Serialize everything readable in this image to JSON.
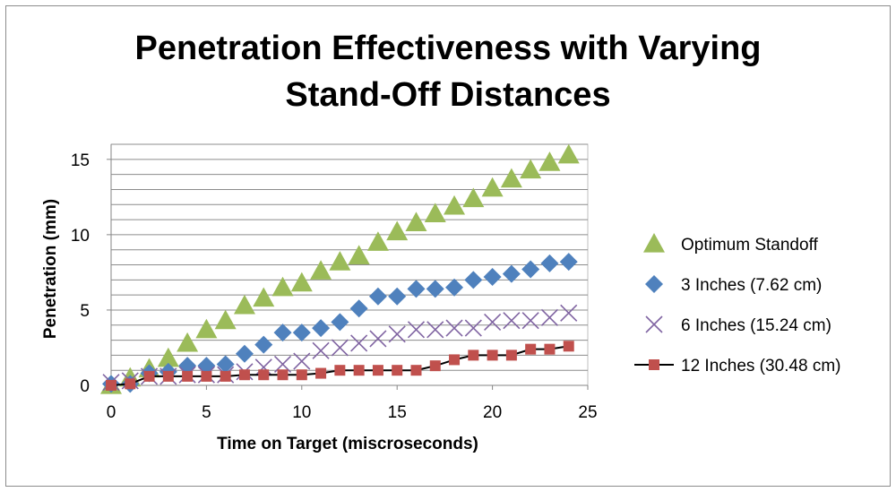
{
  "chart_data": {
    "type": "scatter",
    "title_lines": [
      "Penetration Effectiveness with Varying",
      "Stand-Off Distances"
    ],
    "xlabel": "Time on Target (miscroseconds)",
    "ylabel": "Penetration (mm)",
    "xlim": [
      0,
      25
    ],
    "ylim": [
      0,
      16
    ],
    "xticks": [
      0,
      5,
      10,
      15,
      20,
      25
    ],
    "yticks": [
      0,
      5,
      10,
      15
    ],
    "grid": "horizontal, every 1 unit",
    "legend_position": "right",
    "series": [
      {
        "name": "Optimum Standoff",
        "marker": "triangle",
        "line": false,
        "color": "#9bbb59",
        "x": [
          0,
          1,
          2,
          3,
          4,
          5,
          6,
          7,
          8,
          9,
          10,
          11,
          12,
          13,
          14,
          15,
          16,
          17,
          18,
          19,
          20,
          21,
          22,
          23,
          24
        ],
        "y": [
          0,
          0.5,
          1.1,
          1.8,
          2.8,
          3.7,
          4.3,
          5.3,
          5.8,
          6.5,
          6.8,
          7.6,
          8.2,
          8.6,
          9.5,
          10.2,
          10.8,
          11.4,
          11.9,
          12.4,
          13.1,
          13.7,
          14.3,
          14.8,
          15.3
        ]
      },
      {
        "name": "3 Inches (7.62 cm)",
        "marker": "diamond",
        "line": false,
        "color": "#4f81bd",
        "x": [
          0,
          1,
          2,
          3,
          4,
          5,
          6,
          7,
          8,
          9,
          10,
          11,
          12,
          13,
          14,
          15,
          16,
          17,
          18,
          19,
          20,
          21,
          22,
          23,
          24
        ],
        "y": [
          0.1,
          0.1,
          0.8,
          0.9,
          1.3,
          1.3,
          1.4,
          2.1,
          2.7,
          3.5,
          3.5,
          3.8,
          4.2,
          5.1,
          5.9,
          5.9,
          6.4,
          6.4,
          6.5,
          7.0,
          7.2,
          7.4,
          7.7,
          8.1,
          8.2
        ]
      },
      {
        "name": "6 Inches (15.24 cm)",
        "marker": "x",
        "line": false,
        "color": "#8064a2",
        "x": [
          0,
          1,
          2,
          3,
          4,
          5,
          6,
          7,
          8,
          9,
          10,
          11,
          12,
          13,
          14,
          15,
          16,
          17,
          18,
          19,
          20,
          21,
          22,
          23,
          24
        ],
        "y": [
          0.2,
          0.3,
          0.6,
          0.6,
          0.7,
          0.7,
          0.7,
          0.9,
          1.2,
          1.4,
          1.6,
          2.3,
          2.5,
          2.8,
          3.1,
          3.4,
          3.7,
          3.7,
          3.8,
          3.8,
          4.2,
          4.3,
          4.3,
          4.5,
          4.8
        ]
      },
      {
        "name": "12 Inches (30.48 cm)",
        "marker": "square",
        "line": true,
        "color": "#c0504d",
        "line_color": "#000000",
        "x": [
          0,
          1,
          2,
          3,
          4,
          5,
          6,
          7,
          8,
          9,
          10,
          11,
          12,
          13,
          14,
          15,
          16,
          17,
          18,
          19,
          20,
          21,
          22,
          23,
          24
        ],
        "y": [
          0,
          0.1,
          0.6,
          0.6,
          0.6,
          0.6,
          0.6,
          0.7,
          0.7,
          0.7,
          0.7,
          0.8,
          1.0,
          1.0,
          1.0,
          1.0,
          1.0,
          1.3,
          1.7,
          2.0,
          2.0,
          2.0,
          2.4,
          2.4,
          2.6
        ]
      }
    ]
  }
}
